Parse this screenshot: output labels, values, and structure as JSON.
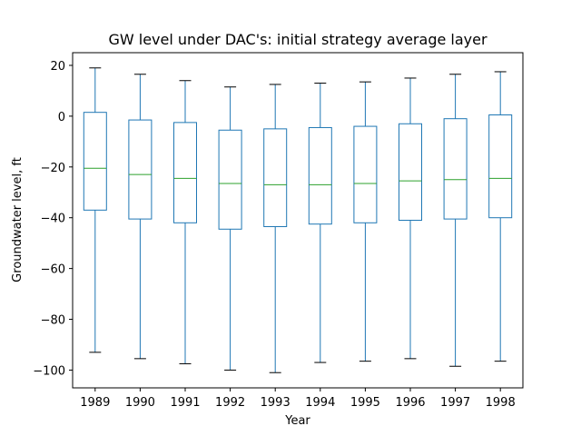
{
  "chart_data": {
    "type": "box",
    "title": "GW level under DAC's: initial strategy average layer",
    "xlabel": "Year",
    "ylabel": "Groundwater level, ft",
    "ylim": [
      -107,
      25
    ],
    "yticks": [
      20,
      0,
      -20,
      -40,
      -60,
      -80,
      -100
    ],
    "ytick_labels": [
      "20",
      "0",
      "−20",
      "−40",
      "−60",
      "−80",
      "−100"
    ],
    "categories": [
      "1989",
      "1990",
      "1991",
      "1992",
      "1993",
      "1994",
      "1995",
      "1996",
      "1997",
      "1998"
    ],
    "boxes": [
      {
        "whisker_low": -93,
        "q1": -37,
        "median": -20.5,
        "q3": 1.5,
        "whisker_high": 19
      },
      {
        "whisker_low": -95.5,
        "q1": -40.5,
        "median": -23,
        "q3": -1.5,
        "whisker_high": 16.5
      },
      {
        "whisker_low": -97.5,
        "q1": -42,
        "median": -24.5,
        "q3": -2.5,
        "whisker_high": 14
      },
      {
        "whisker_low": -100,
        "q1": -44.5,
        "median": -26.5,
        "q3": -5.5,
        "whisker_high": 11.5
      },
      {
        "whisker_low": -101,
        "q1": -43.5,
        "median": -27,
        "q3": -5,
        "whisker_high": 12.5
      },
      {
        "whisker_low": -97,
        "q1": -42.5,
        "median": -27,
        "q3": -4.5,
        "whisker_high": 13
      },
      {
        "whisker_low": -96.5,
        "q1": -42,
        "median": -26.5,
        "q3": -4,
        "whisker_high": 13.5
      },
      {
        "whisker_low": -95.5,
        "q1": -41,
        "median": -25.5,
        "q3": -3,
        "whisker_high": 15
      },
      {
        "whisker_low": -98.5,
        "q1": -40.5,
        "median": -25,
        "q3": -1,
        "whisker_high": 16.5
      },
      {
        "whisker_low": -96.5,
        "q1": -40,
        "median": -24.5,
        "q3": 0.5,
        "whisker_high": 17.5
      }
    ],
    "colors": {
      "box": "#1f77b4",
      "median": "#2ca02c",
      "cap": "#000000"
    },
    "grid": false,
    "legend": "none"
  }
}
